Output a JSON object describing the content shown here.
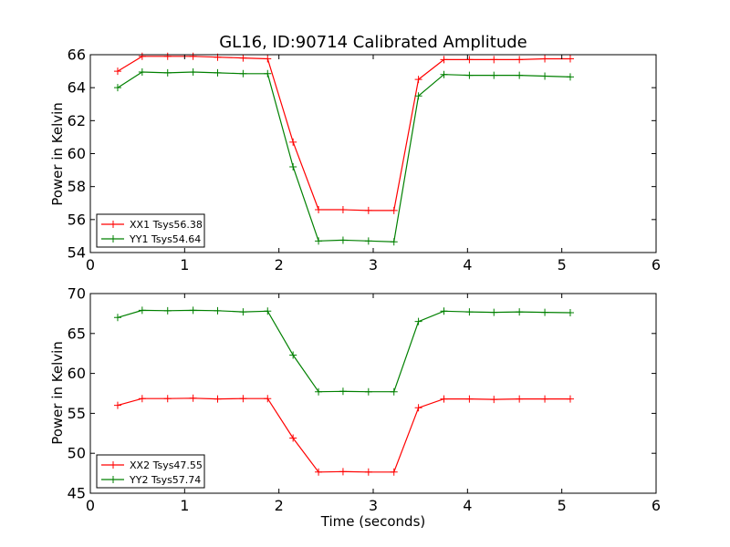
{
  "chart_data": [
    {
      "type": "line",
      "title": "GL16, ID:90714 Calibrated Amplitude",
      "xlabel": "",
      "ylabel": "Power in Kelvin",
      "xlim": [
        0,
        6
      ],
      "ylim": [
        54,
        66
      ],
      "xticks": [
        "0",
        "1",
        "2",
        "3",
        "4",
        "5",
        "6"
      ],
      "yticks": [
        "54",
        "56",
        "58",
        "60",
        "62",
        "64",
        "66"
      ],
      "x": [
        0.29,
        0.55,
        0.82,
        1.09,
        1.35,
        1.62,
        1.88,
        2.15,
        2.42,
        2.68,
        2.95,
        3.22,
        3.48,
        3.75,
        4.02,
        4.28,
        4.55,
        4.82,
        5.09
      ],
      "series": [
        {
          "name": "XX1 Tsys56.38",
          "color": "#ff0000",
          "values": [
            65.0,
            65.9,
            65.9,
            65.9,
            65.85,
            65.8,
            65.75,
            60.7,
            56.6,
            56.6,
            56.55,
            56.55,
            64.5,
            65.7,
            65.7,
            65.7,
            65.7,
            65.75,
            65.75
          ]
        },
        {
          "name": "YY1 Tsys54.64",
          "color": "#008000",
          "values": [
            64.0,
            64.95,
            64.9,
            64.95,
            64.9,
            64.85,
            64.85,
            59.2,
            54.7,
            54.75,
            54.7,
            54.65,
            63.5,
            64.8,
            64.75,
            64.75,
            64.75,
            64.7,
            64.65
          ]
        }
      ],
      "legend": "lower-left",
      "grid": false
    },
    {
      "type": "line",
      "title": "",
      "xlabel": "Time (seconds)",
      "ylabel": "Power in Kelvin",
      "xlim": [
        0,
        6
      ],
      "ylim": [
        45,
        70
      ],
      "xticks": [
        "0",
        "1",
        "2",
        "3",
        "4",
        "5",
        "6"
      ],
      "yticks": [
        "45",
        "50",
        "55",
        "60",
        "65",
        "70"
      ],
      "x": [
        0.29,
        0.55,
        0.82,
        1.09,
        1.35,
        1.62,
        1.88,
        2.15,
        2.42,
        2.68,
        2.95,
        3.22,
        3.48,
        3.75,
        4.02,
        4.28,
        4.55,
        4.82,
        5.09
      ],
      "series": [
        {
          "name": "XX2 Tsys47.55",
          "color": "#ff0000",
          "values": [
            56.0,
            56.85,
            56.85,
            56.9,
            56.8,
            56.85,
            56.85,
            51.9,
            47.65,
            47.7,
            47.65,
            47.65,
            55.7,
            56.8,
            56.8,
            56.75,
            56.8,
            56.8,
            56.8
          ]
        },
        {
          "name": "YY2 Tsys57.74",
          "color": "#008000",
          "values": [
            67.0,
            67.9,
            67.85,
            67.9,
            67.85,
            67.7,
            67.8,
            62.3,
            57.7,
            57.75,
            57.7,
            57.7,
            66.5,
            67.8,
            67.7,
            67.65,
            67.7,
            67.65,
            67.6
          ]
        }
      ],
      "legend": "lower-left",
      "grid": false
    }
  ]
}
